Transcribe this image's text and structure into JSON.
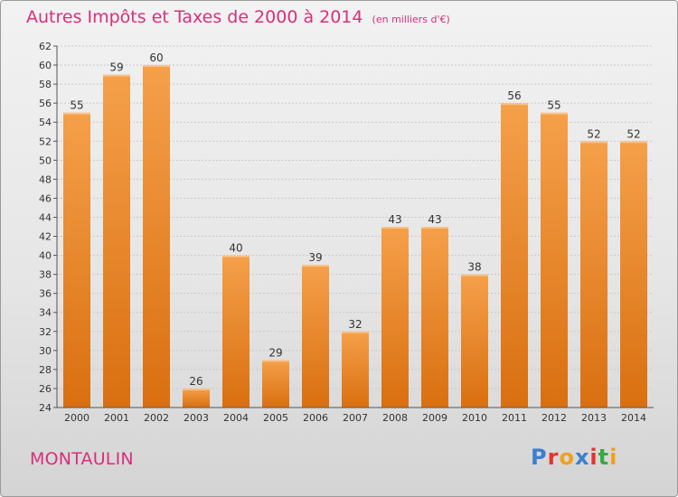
{
  "title": "Autres Impôts et Taxes de 2000 à 2014",
  "subtitle": "(en milliers d'€)",
  "commune": "MONTAULIN",
  "logo": {
    "text": "Proxiti",
    "colors": [
      "#3b7fd0",
      "#e3342f",
      "#f0a020",
      "#3b7fd0",
      "#e3342f",
      "#3aa745",
      "#f0a020"
    ]
  },
  "colors": {
    "title": "#d8307a",
    "bar_light": "#f5a04a",
    "bar_dark": "#d96f10"
  },
  "chart_data": {
    "type": "bar",
    "title": "Autres Impôts et Taxes de 2000 à 2014",
    "subtitle": "(en milliers d'€)",
    "categories": [
      "2000",
      "2001",
      "2002",
      "2003",
      "2004",
      "2005",
      "2006",
      "2007",
      "2008",
      "2009",
      "2010",
      "2011",
      "2012",
      "2013",
      "2014"
    ],
    "values": [
      55,
      59,
      60,
      26,
      40,
      29,
      39,
      32,
      43,
      43,
      38,
      56,
      55,
      52,
      52
    ],
    "ylim": [
      24,
      62
    ],
    "yticks": [
      24,
      26,
      28,
      30,
      32,
      34,
      36,
      38,
      40,
      42,
      44,
      46,
      48,
      50,
      52,
      54,
      56,
      58,
      60,
      62
    ],
    "grid": true
  }
}
